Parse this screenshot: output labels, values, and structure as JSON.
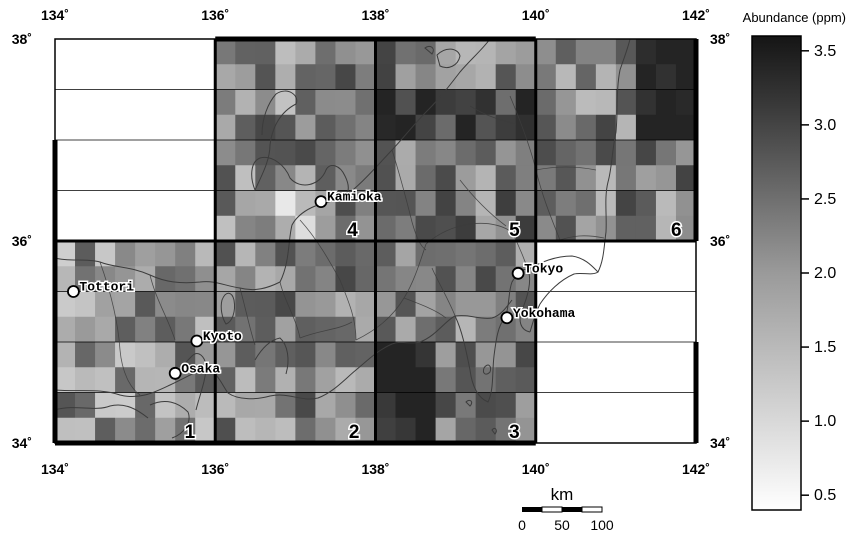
{
  "map": {
    "lon_ticks_top": [
      "134˚",
      "136˚",
      "138˚",
      "140˚",
      "142˚"
    ],
    "lon_ticks_bottom": [
      "134˚",
      "136˚",
      "138˚",
      "140˚",
      "142˚"
    ],
    "lat_ticks_left": [
      "38˚",
      "36˚",
      "34˚"
    ],
    "lat_ticks_right": [
      "38˚",
      "36˚",
      "34˚"
    ],
    "lon_range": [
      134,
      142
    ],
    "lat_range": [
      34,
      38
    ],
    "region_labels": [
      "1",
      "2",
      "3",
      "4",
      "5",
      "6"
    ],
    "cities": [
      {
        "name": "Tottori",
        "lon": 134.23,
        "lat": 35.5
      },
      {
        "name": "Kyoto",
        "lon": 135.77,
        "lat": 35.01
      },
      {
        "name": "Osaka",
        "lon": 135.5,
        "lat": 34.69
      },
      {
        "name": "Kamioka",
        "lon": 137.32,
        "lat": 36.39
      },
      {
        "name": "Tokyo",
        "lon": 139.78,
        "lat": 35.68
      },
      {
        "name": "Yokohama",
        "lon": 139.64,
        "lat": 35.24
      }
    ]
  },
  "colorbar": {
    "title": "Abundance (ppm)",
    "ticks": [
      "3.5",
      "3.0",
      "2.5",
      "2.0",
      "1.5",
      "1.0",
      "0.5"
    ],
    "range": [
      0.4,
      3.6
    ]
  },
  "scalebar": {
    "unit": "km",
    "ticks": [
      "0",
      "50",
      "100"
    ]
  },
  "colors": {
    "high": "#1b1b1b",
    "low": "#f4f4f4",
    "frame": "#000000",
    "coast": "#3c3c3c"
  }
}
